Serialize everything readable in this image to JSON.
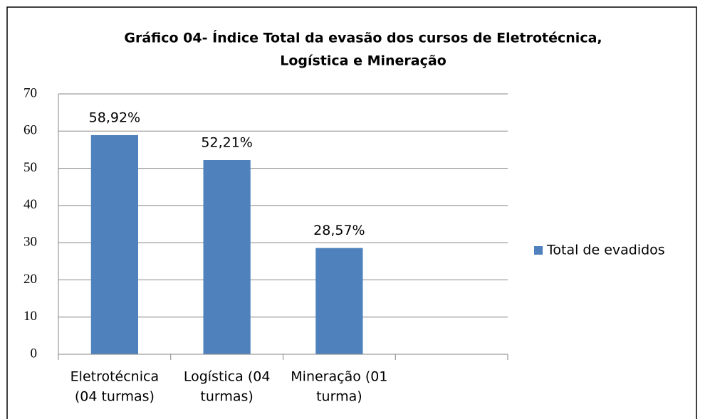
{
  "chart_data": {
    "type": "bar",
    "title": [
      "Gráfico 04- Índice Total da evasão dos cursos de Eletrotécnica,",
      "Logística e Mineração"
    ],
    "categories": [
      [
        "Eletrotécnica",
        "(04 turmas)"
      ],
      [
        "Logística (04",
        "turmas)"
      ],
      [
        "Mineração (01",
        "turma)"
      ],
      null
    ],
    "series": [
      {
        "name": "Total de evadidos",
        "color": "#4f81bd",
        "values": [
          58.92,
          52.21,
          28.57,
          null
        ],
        "value_labels": [
          "58,92%",
          "52,21%",
          "28,57%",
          null
        ]
      }
    ],
    "ylim": [
      0,
      70
    ],
    "yticks": [
      0,
      10,
      20,
      30,
      40,
      50,
      60,
      70
    ],
    "grid": true,
    "legend": "right"
  }
}
